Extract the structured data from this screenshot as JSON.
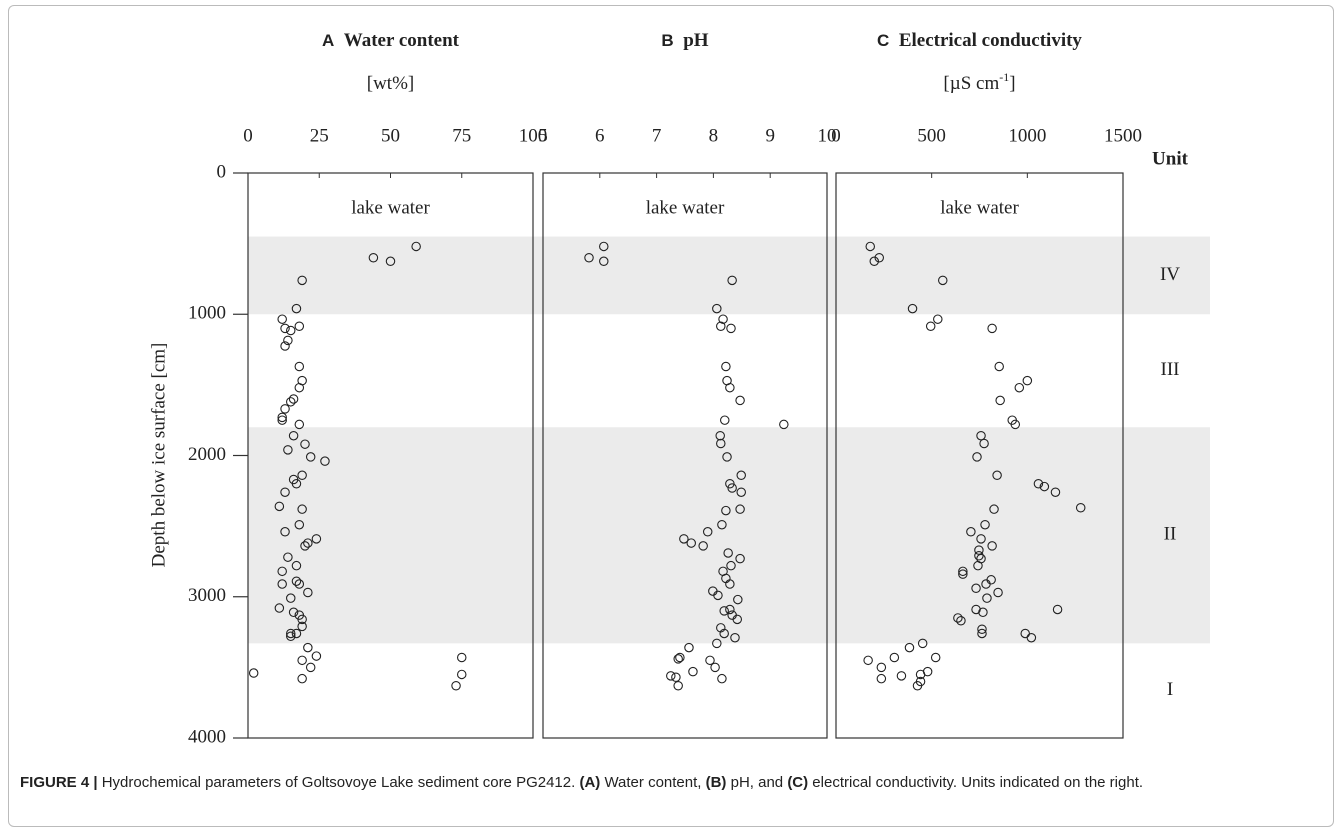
{
  "chart_data": [
    {
      "type": "scatter",
      "panel": "A",
      "title": "Water content",
      "x_label": "[wt%]",
      "annotation": "lake water",
      "xlim": [
        0,
        100
      ],
      "xticks": [
        0,
        25,
        50,
        75,
        100
      ],
      "ylim": [
        0,
        4000
      ],
      "yticks": [
        0,
        1000,
        2000,
        3000,
        4000
      ],
      "y_label": "Depth below ice surface [cm]",
      "units": {
        "title": "Unit",
        "zones": [
          {
            "label": "IV",
            "from": 450,
            "to": 1000,
            "shaded": true
          },
          {
            "label": "III",
            "from": 1000,
            "to": 1800,
            "shaded": false
          },
          {
            "label": "II",
            "from": 1800,
            "to": 3330,
            "shaded": true
          },
          {
            "label": "I",
            "from": 3330,
            "to": 4000,
            "shaded": false
          }
        ]
      },
      "x": [
        59,
        44,
        50,
        19,
        17,
        12,
        18,
        13,
        15,
        14,
        13,
        18,
        19,
        18,
        16,
        15,
        13,
        12,
        12,
        18,
        16,
        20,
        14,
        22,
        27,
        19,
        17,
        16,
        13,
        11,
        19,
        18,
        13,
        24,
        21,
        20,
        14,
        17,
        12,
        17,
        12,
        18,
        21,
        15,
        11,
        16,
        18,
        19,
        19,
        15,
        15,
        17,
        21,
        24,
        75,
        19,
        22,
        2,
        75,
        19,
        73
      ],
      "y": [
        520,
        600,
        625,
        760,
        960,
        1035,
        1085,
        1100,
        1115,
        1185,
        1225,
        1370,
        1470,
        1520,
        1600,
        1620,
        1670,
        1730,
        1750,
        1780,
        1860,
        1920,
        1960,
        2010,
        2040,
        2140,
        2200,
        2170,
        2260,
        2360,
        2380,
        2490,
        2540,
        2590,
        2620,
        2640,
        2720,
        2780,
        2820,
        2890,
        2910,
        2910,
        2970,
        3010,
        3080,
        3110,
        3130,
        3160,
        3210,
        3260,
        3280,
        3260,
        3360,
        3420,
        3430,
        3450,
        3500,
        3540,
        3550,
        3580,
        3630
      ]
    },
    {
      "type": "scatter",
      "panel": "B",
      "title": "pH",
      "x_label": "",
      "annotation": "lake water",
      "xlim": [
        5,
        10
      ],
      "xticks": [
        5,
        6,
        7,
        8,
        9,
        10
      ],
      "x": [
        6.07,
        5.81,
        6.07,
        8.33,
        8.06,
        8.17,
        8.13,
        8.31,
        8.22,
        8.24,
        8.29,
        8.47,
        8.2,
        9.24,
        8.12,
        8.13,
        8.24,
        8.49,
        8.29,
        8.33,
        8.49,
        8.47,
        8.22,
        8.15,
        7.9,
        7.48,
        7.61,
        7.82,
        8.26,
        8.47,
        8.31,
        8.17,
        8.22,
        8.29,
        7.99,
        8.08,
        8.43,
        8.19,
        8.29,
        8.33,
        8.42,
        8.13,
        8.19,
        8.38,
        8.06,
        7.57,
        7.41,
        7.38,
        7.94,
        8.03,
        7.64,
        7.25,
        7.34,
        8.15,
        7.38
      ],
      "y": [
        520,
        600,
        625,
        760,
        960,
        1035,
        1085,
        1100,
        1370,
        1470,
        1520,
        1610,
        1750,
        1780,
        1860,
        1915,
        2010,
        2140,
        2200,
        2230,
        2260,
        2380,
        2390,
        2490,
        2540,
        2590,
        2620,
        2640,
        2690,
        2730,
        2780,
        2820,
        2870,
        2910,
        2960,
        2990,
        3020,
        3100,
        3090,
        3130,
        3160,
        3220,
        3260,
        3290,
        3330,
        3360,
        3430,
        3440,
        3450,
        3500,
        3530,
        3560,
        3570,
        3580,
        3630
      ]
    },
    {
      "type": "scatter",
      "panel": "C",
      "title": "Electrical conductivity",
      "x_label": "[µS cm",
      "x_label_sup": "-1",
      "x_label_end": "]",
      "annotation": "lake water",
      "xlim": [
        0,
        1500
      ],
      "xticks": [
        0,
        500,
        1000,
        1500
      ],
      "x": [
        179,
        226,
        200,
        558,
        400,
        532,
        495,
        816,
        853,
        1000,
        958,
        858,
        921,
        937,
        758,
        774,
        737,
        842,
        1058,
        1089,
        1147,
        1279,
        826,
        779,
        705,
        758,
        816,
        747,
        747,
        758,
        742,
        663,
        663,
        811,
        784,
        732,
        847,
        789,
        732,
        768,
        1158,
        637,
        653,
        763,
        763,
        989,
        1021,
        453,
        384,
        521,
        305,
        168,
        237,
        479,
        442,
        342,
        237,
        442,
        426
      ],
      "y": [
        520,
        600,
        625,
        760,
        960,
        1035,
        1085,
        1100,
        1370,
        1470,
        1520,
        1610,
        1750,
        1780,
        1860,
        1915,
        2010,
        2140,
        2200,
        2220,
        2260,
        2370,
        2380,
        2490,
        2540,
        2590,
        2640,
        2670,
        2710,
        2730,
        2780,
        2820,
        2840,
        2880,
        2910,
        2940,
        2970,
        3010,
        3090,
        3110,
        3090,
        3150,
        3170,
        3230,
        3260,
        3260,
        3290,
        3330,
        3360,
        3430,
        3430,
        3450,
        3500,
        3530,
        3550,
        3560,
        3580,
        3600,
        3630
      ]
    }
  ],
  "caption": {
    "label": "FIGURE 4 |",
    "text1": " Hydrochemical parameters of Goltsovoye Lake sediment core PG2412. ",
    "a": "(A)",
    "text2": " Water content, ",
    "b": "(B)",
    "text3": " pH, and ",
    "c": "(C)",
    "text4": " electrical conductivity. Units indicated on the right."
  }
}
